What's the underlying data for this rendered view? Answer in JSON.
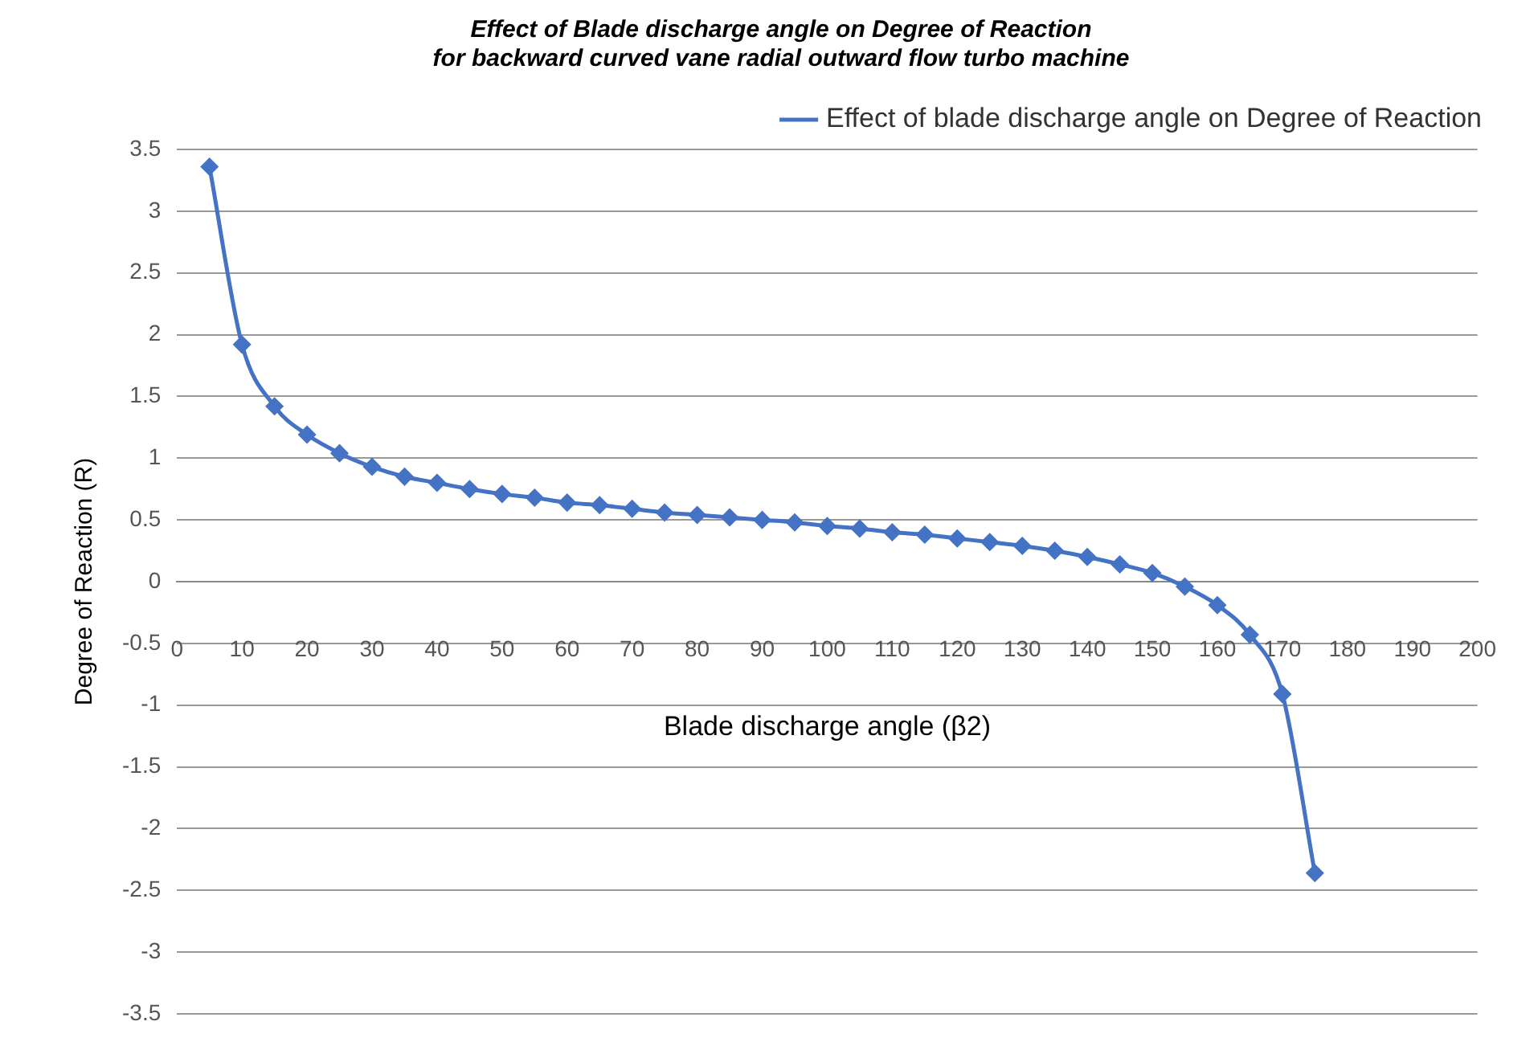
{
  "chart_data": {
    "type": "line",
    "title": [
      "Effect of Blade discharge angle on Degree of Reaction",
      "for backward curved vane radial outward flow turbo machine"
    ],
    "xlabel": "Blade discharge angle (β2)",
    "ylabel": "Degree of Reaction (R)",
    "x": [
      5,
      10,
      15,
      20,
      25,
      30,
      35,
      40,
      45,
      50,
      55,
      60,
      65,
      70,
      75,
      80,
      85,
      90,
      95,
      100,
      105,
      110,
      115,
      120,
      125,
      130,
      135,
      140,
      145,
      150,
      155,
      160,
      165,
      170,
      175
    ],
    "series": [
      {
        "name": "Effect of blade discharge angle on Degree of Reaction",
        "color": "#4472c4",
        "values": [
          3.36,
          1.92,
          1.42,
          1.19,
          1.04,
          0.93,
          0.85,
          0.8,
          0.75,
          0.71,
          0.68,
          0.64,
          0.62,
          0.59,
          0.56,
          0.54,
          0.52,
          0.5,
          0.48,
          0.45,
          0.43,
          0.4,
          0.38,
          0.35,
          0.32,
          0.29,
          0.25,
          0.2,
          0.14,
          0.07,
          -0.04,
          -0.19,
          -0.43,
          -0.91,
          -2.36
        ]
      }
    ],
    "xlim": [
      0,
      200
    ],
    "xticks": [
      0,
      10,
      20,
      30,
      40,
      50,
      60,
      70,
      80,
      90,
      100,
      110,
      120,
      130,
      140,
      150,
      160,
      170,
      180,
      190,
      200
    ],
    "ylim": [
      -3.5,
      3.5
    ],
    "yticks": [
      -3.5,
      -3,
      -2.5,
      -2,
      -1.5,
      -1,
      -0.5,
      0,
      0.5,
      1,
      1.5,
      2,
      2.5,
      3,
      3.5
    ],
    "grid": "y",
    "legend": "top right",
    "marker": "diamond",
    "line_style": "solid"
  }
}
